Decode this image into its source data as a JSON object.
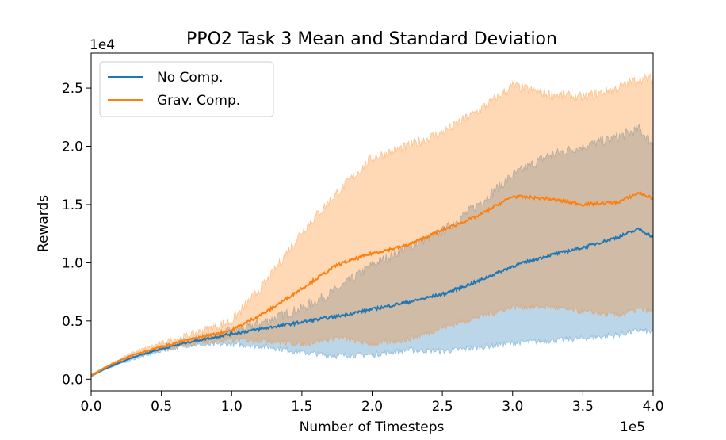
{
  "chart_data": {
    "type": "line",
    "title": "PPO2 Task 3 Mean and Standard Deviation",
    "xlabel": "Number of Timesteps",
    "ylabel": "Rewards",
    "x_offset_label": "1e5",
    "y_offset_label": "1e4",
    "xlim": [
      0,
      4.0
    ],
    "ylim": [
      -0.1,
      2.8
    ],
    "x_ticks": [
      "0.0",
      "0.5",
      "1.0",
      "1.5",
      "2.0",
      "2.5",
      "3.0",
      "3.5",
      "4.0"
    ],
    "y_ticks": [
      "0.0",
      "0.5",
      "1.0",
      "1.5",
      "2.0",
      "2.5"
    ],
    "legend_position": "top-left",
    "x": [
      0.0,
      0.1,
      0.2,
      0.3,
      0.5,
      0.7,
      1.0,
      1.25,
      1.5,
      1.75,
      2.0,
      2.25,
      2.5,
      2.75,
      3.0,
      3.25,
      3.5,
      3.75,
      3.9,
      4.0
    ],
    "series": [
      {
        "name": "No Comp.",
        "color": "#1f77b4",
        "mean": [
          0.03,
          0.09,
          0.14,
          0.19,
          0.26,
          0.32,
          0.39,
          0.44,
          0.49,
          0.54,
          0.6,
          0.66,
          0.73,
          0.84,
          0.97,
          1.06,
          1.13,
          1.22,
          1.29,
          1.22
        ],
        "upper": [
          0.04,
          0.1,
          0.15,
          0.2,
          0.28,
          0.34,
          0.41,
          0.5,
          0.61,
          0.77,
          0.98,
          1.13,
          1.27,
          1.5,
          1.75,
          1.92,
          2.0,
          2.08,
          2.15,
          2.02
        ],
        "lower": [
          0.02,
          0.08,
          0.13,
          0.17,
          0.24,
          0.29,
          0.3,
          0.28,
          0.23,
          0.2,
          0.21,
          0.25,
          0.24,
          0.27,
          0.31,
          0.33,
          0.35,
          0.38,
          0.42,
          0.4
        ]
      },
      {
        "name": "Grav. Comp.",
        "color": "#ff7f0e",
        "mean": [
          0.03,
          0.1,
          0.16,
          0.21,
          0.28,
          0.34,
          0.42,
          0.58,
          0.78,
          0.98,
          1.08,
          1.15,
          1.28,
          1.4,
          1.57,
          1.55,
          1.5,
          1.52,
          1.6,
          1.55
        ],
        "upper": [
          0.04,
          0.11,
          0.17,
          0.23,
          0.31,
          0.38,
          0.5,
          0.84,
          1.27,
          1.6,
          1.9,
          2.0,
          2.12,
          2.3,
          2.52,
          2.45,
          2.42,
          2.5,
          2.58,
          2.58
        ],
        "lower": [
          0.02,
          0.09,
          0.15,
          0.19,
          0.25,
          0.3,
          0.34,
          0.33,
          0.3,
          0.36,
          0.3,
          0.34,
          0.44,
          0.53,
          0.62,
          0.62,
          0.58,
          0.55,
          0.6,
          0.58
        ]
      }
    ]
  }
}
